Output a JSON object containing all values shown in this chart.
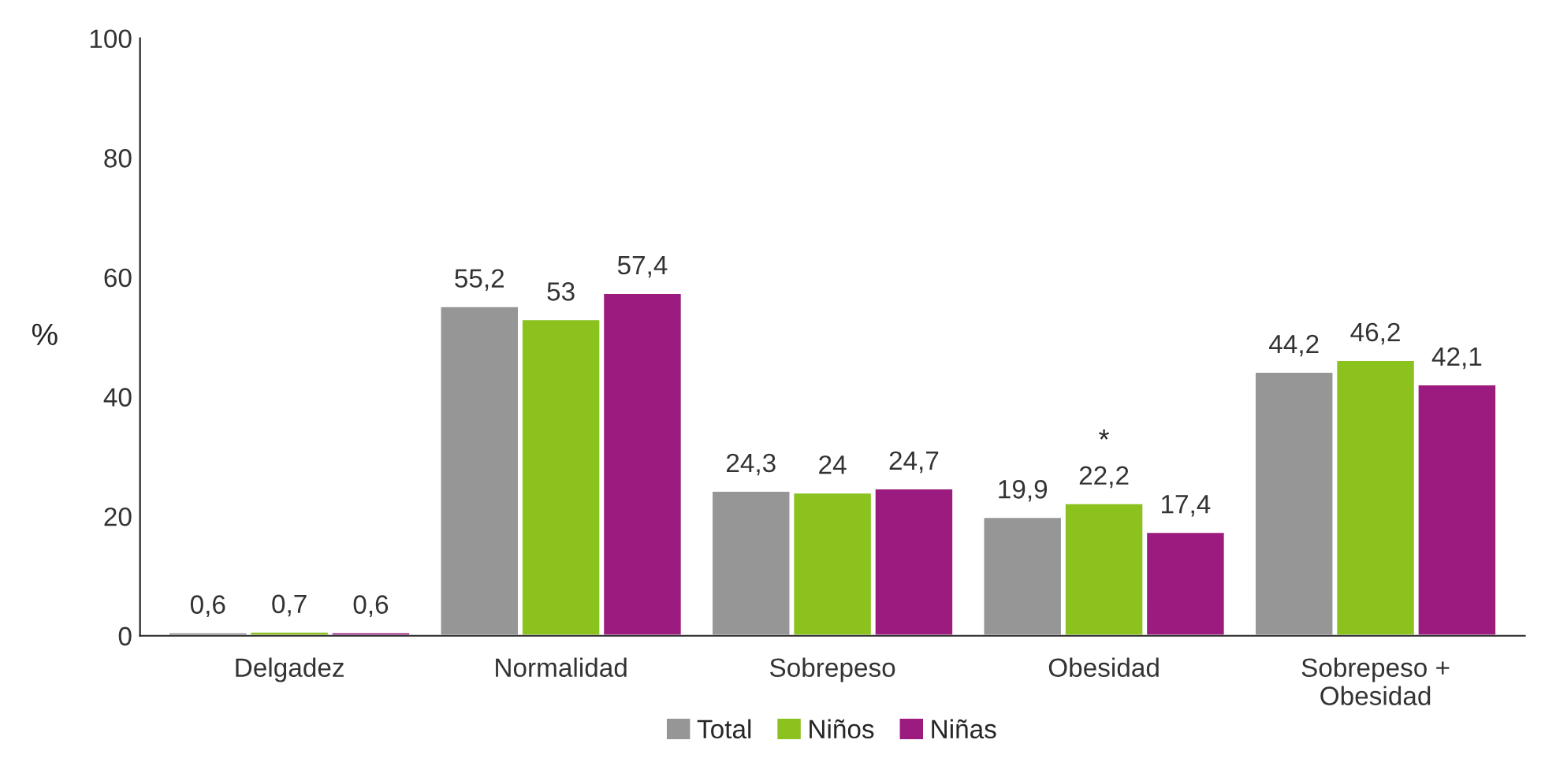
{
  "chart_data": {
    "type": "bar",
    "ylabel": "%",
    "categories": [
      "Delgadez",
      "Normalidad",
      "Sobrepeso",
      "Obesidad",
      "Sobrepeso +\nObesidad"
    ],
    "series": [
      {
        "name": "Total",
        "color": "#969696",
        "values": [
          0.6,
          55.2,
          24.3,
          19.9,
          44.2
        ],
        "value_labels": [
          "0,6",
          "55,2",
          "24,3",
          "19,9",
          "44,2"
        ]
      },
      {
        "name": "Niños",
        "color": "#8cc21e",
        "values": [
          0.7,
          53,
          24,
          22.2,
          46.2
        ],
        "value_labels": [
          "0,7",
          "53",
          "24",
          "22,2",
          "46,2"
        ]
      },
      {
        "name": "Niñas",
        "color": "#9b1b7e",
        "values": [
          0.6,
          57.4,
          24.7,
          17.4,
          42.1
        ],
        "value_labels": [
          "0,6",
          "57,4",
          "24,7",
          "17,4",
          "42,1"
        ]
      }
    ],
    "annotations": [
      {
        "text": "*",
        "x": "Obesidad",
        "y": 22.2
      }
    ],
    "ylim": [
      0,
      100
    ],
    "yticks": [
      0,
      20,
      40,
      60,
      80,
      100
    ],
    "grid": false,
    "legend": "bottom"
  }
}
